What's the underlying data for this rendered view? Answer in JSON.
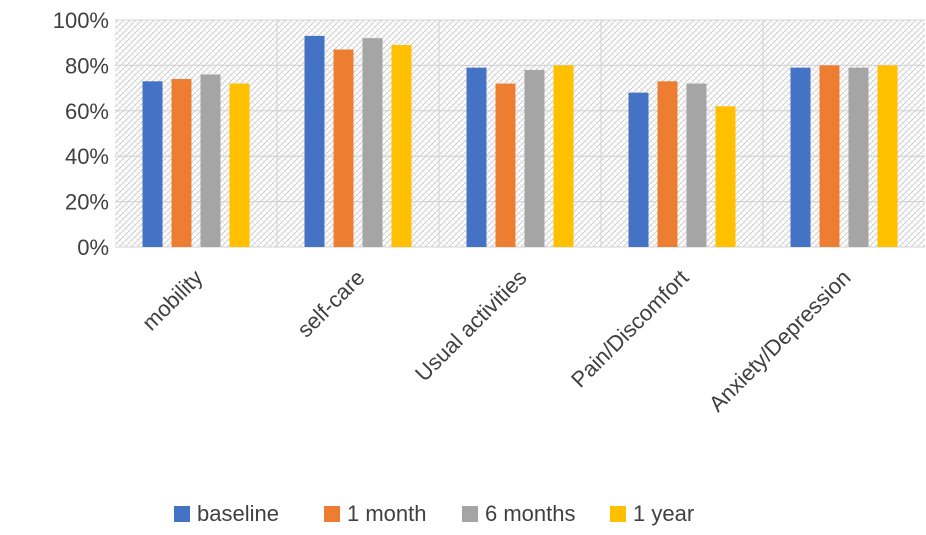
{
  "chart_data": {
    "type": "bar",
    "categories": [
      "mobility",
      "self-care",
      "Usual activities",
      "Pain/Discomfort",
      "Anxiety/Depression"
    ],
    "series": [
      {
        "name": "baseline",
        "color": "#4472C4",
        "values": [
          73,
          93,
          79,
          68,
          79
        ]
      },
      {
        "name": "1 month",
        "color": "#ED7D31",
        "values": [
          74,
          87,
          72,
          73,
          80
        ]
      },
      {
        "name": "6 months",
        "color": "#A5A5A5",
        "values": [
          76,
          92,
          78,
          72,
          79
        ]
      },
      {
        "name": "1 year",
        "color": "#FFC000",
        "values": [
          72,
          89,
          80,
          62,
          80
        ]
      }
    ],
    "ylim": [
      0,
      100
    ],
    "yticks": [
      0,
      20,
      40,
      60,
      80,
      100
    ],
    "ytick_labels": [
      "0%",
      "20%",
      "40%",
      "60%",
      "80%",
      "100%"
    ],
    "grid": true,
    "legend": "bottom"
  }
}
